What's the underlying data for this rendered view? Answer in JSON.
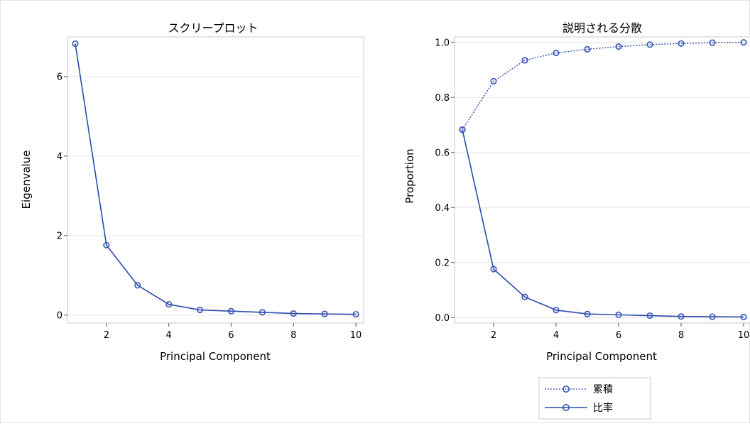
{
  "chart_data": [
    {
      "type": "line",
      "title": "スクリープロット",
      "xlabel": "Principal Component",
      "ylabel": "Eigenvalue",
      "xlim": [
        0.75,
        10.25
      ],
      "ylim": [
        -0.2,
        7.0
      ],
      "xticks": [
        "2",
        "4",
        "6",
        "8",
        "10"
      ],
      "yticks": [
        "0",
        "2",
        "4",
        "6"
      ],
      "grid": "horizontal",
      "x": [
        1,
        2,
        3,
        4,
        5,
        6,
        7,
        8,
        9,
        10
      ],
      "series": [
        {
          "values": [
            6.83,
            1.76,
            0.75,
            0.27,
            0.13,
            0.1,
            0.07,
            0.04,
            0.03,
            0.02
          ],
          "style": "solid"
        }
      ]
    },
    {
      "type": "line",
      "title": "説明される分散",
      "xlabel": "Principal Component",
      "ylabel": "Proportion",
      "xlim": [
        0.75,
        10.25
      ],
      "ylim": [
        -0.02,
        1.02
      ],
      "xticks": [
        "2",
        "4",
        "6",
        "8",
        "10"
      ],
      "yticks": [
        "0.0",
        "0.2",
        "0.4",
        "0.6",
        "0.8",
        "1.0"
      ],
      "grid": "horizontal",
      "legend_position": "bottom",
      "x": [
        1,
        2,
        3,
        4,
        5,
        6,
        7,
        8,
        9,
        10
      ],
      "series": [
        {
          "name": "累積",
          "values": [
            0.683,
            0.859,
            0.935,
            0.962,
            0.975,
            0.985,
            0.992,
            0.996,
            0.999,
            1.0
          ],
          "style": "dotted"
        },
        {
          "name": "比率",
          "values": [
            0.683,
            0.176,
            0.075,
            0.027,
            0.013,
            0.01,
            0.007,
            0.004,
            0.003,
            0.002
          ],
          "style": "solid"
        }
      ]
    }
  ],
  "colors": {
    "line": "#2a4bab",
    "marker": "#3c58b5",
    "frame": "#c8c8c8",
    "grid": "#e6e6e6"
  }
}
